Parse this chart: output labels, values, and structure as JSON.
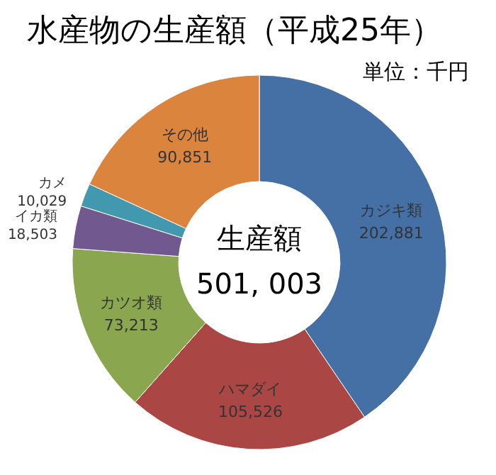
{
  "chart_data": {
    "type": "donut",
    "title": "水産物の生産額（平成25年）",
    "subtitle": "単位：千円",
    "categories": [
      "カジキ類",
      "ハマダイ",
      "カツオ類",
      "イカ類",
      "カメ",
      "その他"
    ],
    "values": [
      202881,
      105526,
      73213,
      18503,
      10029,
      90851
    ],
    "value_labels": [
      "202,881",
      "105,526",
      "73,213",
      "18,503",
      "10,029",
      "90,851"
    ],
    "colors": [
      "#4470a6",
      "#aa4744",
      "#8aa64e",
      "#71588f",
      "#4298ae",
      "#db843d"
    ],
    "annotations": [
      "生産額",
      "501, 003"
    ],
    "legend": false
  }
}
